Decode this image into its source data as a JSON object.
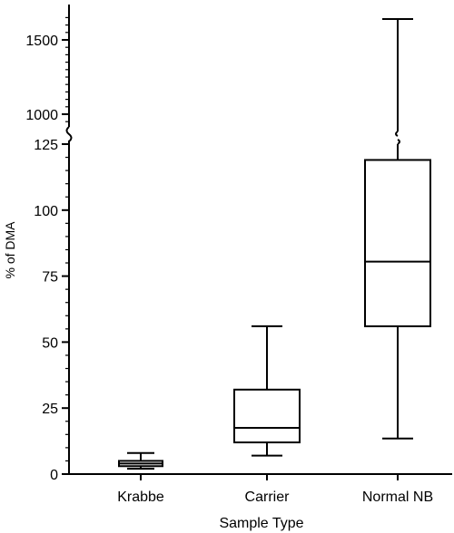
{
  "chart_data": {
    "type": "box",
    "xlabel": "Sample Type",
    "ylabel": "% of DMA",
    "axis_break": {
      "lower_range": [
        0,
        125
      ],
      "upper_range": [
        900,
        1700
      ]
    },
    "lower_ticks": [
      "0",
      "25",
      "50",
      "75",
      "100",
      "125"
    ],
    "upper_ticks": [
      "1000",
      "1500"
    ],
    "categories": [
      "Krabbe",
      "Carrier",
      "Normal NB"
    ],
    "boxes": [
      {
        "category": "Krabbe",
        "min": 2,
        "q1": 3,
        "median": 4,
        "q3": 5,
        "max": 8
      },
      {
        "category": "Carrier",
        "min": 7,
        "q1": 12,
        "median": 17.5,
        "q3": 32,
        "max": 56
      },
      {
        "category": "Normal NB",
        "min": 13.5,
        "q1": 56,
        "median": 80.5,
        "q3": 119,
        "max": 1640
      }
    ],
    "grid": false,
    "legend": "none"
  }
}
